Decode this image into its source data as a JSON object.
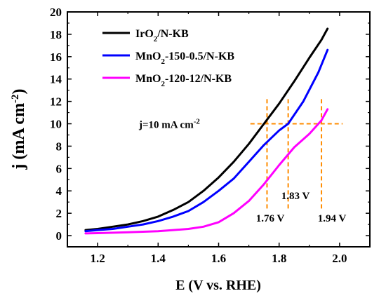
{
  "chart_data": {
    "type": "line",
    "xlabel": "E (V vs. RHE)",
    "ylabel": "j (mA cm",
    "ylabel_sup": "-2",
    "ylabel_close": ")",
    "xlim": [
      1.1,
      2.1
    ],
    "ylim": [
      -1,
      20
    ],
    "xticks": [
      "1.2",
      "1.4",
      "1.6",
      "1.8",
      "2.0"
    ],
    "yticks": [
      "0",
      "2",
      "4",
      "6",
      "8",
      "10",
      "12",
      "14",
      "16",
      "18",
      "20"
    ],
    "grid": false,
    "legend_placement": "top-left",
    "series": [
      {
        "name_parts": [
          "IrO",
          "2",
          "/N-KB"
        ],
        "color": "#000000",
        "x": [
          1.16,
          1.2,
          1.25,
          1.3,
          1.35,
          1.4,
          1.45,
          1.5,
          1.55,
          1.6,
          1.65,
          1.7,
          1.75,
          1.8,
          1.85,
          1.9,
          1.94,
          1.96
        ],
        "y": [
          0.5,
          0.6,
          0.8,
          1.0,
          1.3,
          1.7,
          2.3,
          3.0,
          4.0,
          5.2,
          6.6,
          8.2,
          10.0,
          11.8,
          13.8,
          15.9,
          17.5,
          18.5
        ]
      },
      {
        "name_parts": [
          "MnO",
          "2",
          "-150-0.5/N-KB"
        ],
        "color": "#0000ff",
        "x": [
          1.16,
          1.2,
          1.25,
          1.3,
          1.35,
          1.4,
          1.45,
          1.5,
          1.55,
          1.6,
          1.65,
          1.7,
          1.75,
          1.8,
          1.83,
          1.88,
          1.93,
          1.96
        ],
        "y": [
          0.4,
          0.5,
          0.6,
          0.8,
          1.0,
          1.3,
          1.7,
          2.2,
          3.0,
          4.0,
          5.1,
          6.6,
          8.1,
          9.4,
          10.0,
          12.0,
          14.6,
          16.6
        ]
      },
      {
        "name_parts": [
          "MnO",
          "2",
          "-120-12/N-KB"
        ],
        "color": "#ff00ff",
        "x": [
          1.16,
          1.2,
          1.3,
          1.4,
          1.5,
          1.55,
          1.6,
          1.65,
          1.7,
          1.75,
          1.8,
          1.85,
          1.9,
          1.94,
          1.96
        ],
        "y": [
          0.2,
          0.22,
          0.3,
          0.4,
          0.6,
          0.8,
          1.2,
          2.0,
          3.1,
          4.6,
          6.3,
          7.9,
          9.1,
          10.3,
          11.3
        ]
      }
    ],
    "reference_line": {
      "label": "j=10 mA cm",
      "label_sup": "-2",
      "y": 10,
      "color": "#ff8c00"
    },
    "markers": [
      {
        "x": 1.76,
        "label": "1.76 V",
        "color": "#ff8c00"
      },
      {
        "x": 1.83,
        "label": "1.83 V",
        "color": "#ff8c00"
      },
      {
        "x": 1.94,
        "label": "1.94 V",
        "color": "#ff8c00"
      }
    ]
  }
}
